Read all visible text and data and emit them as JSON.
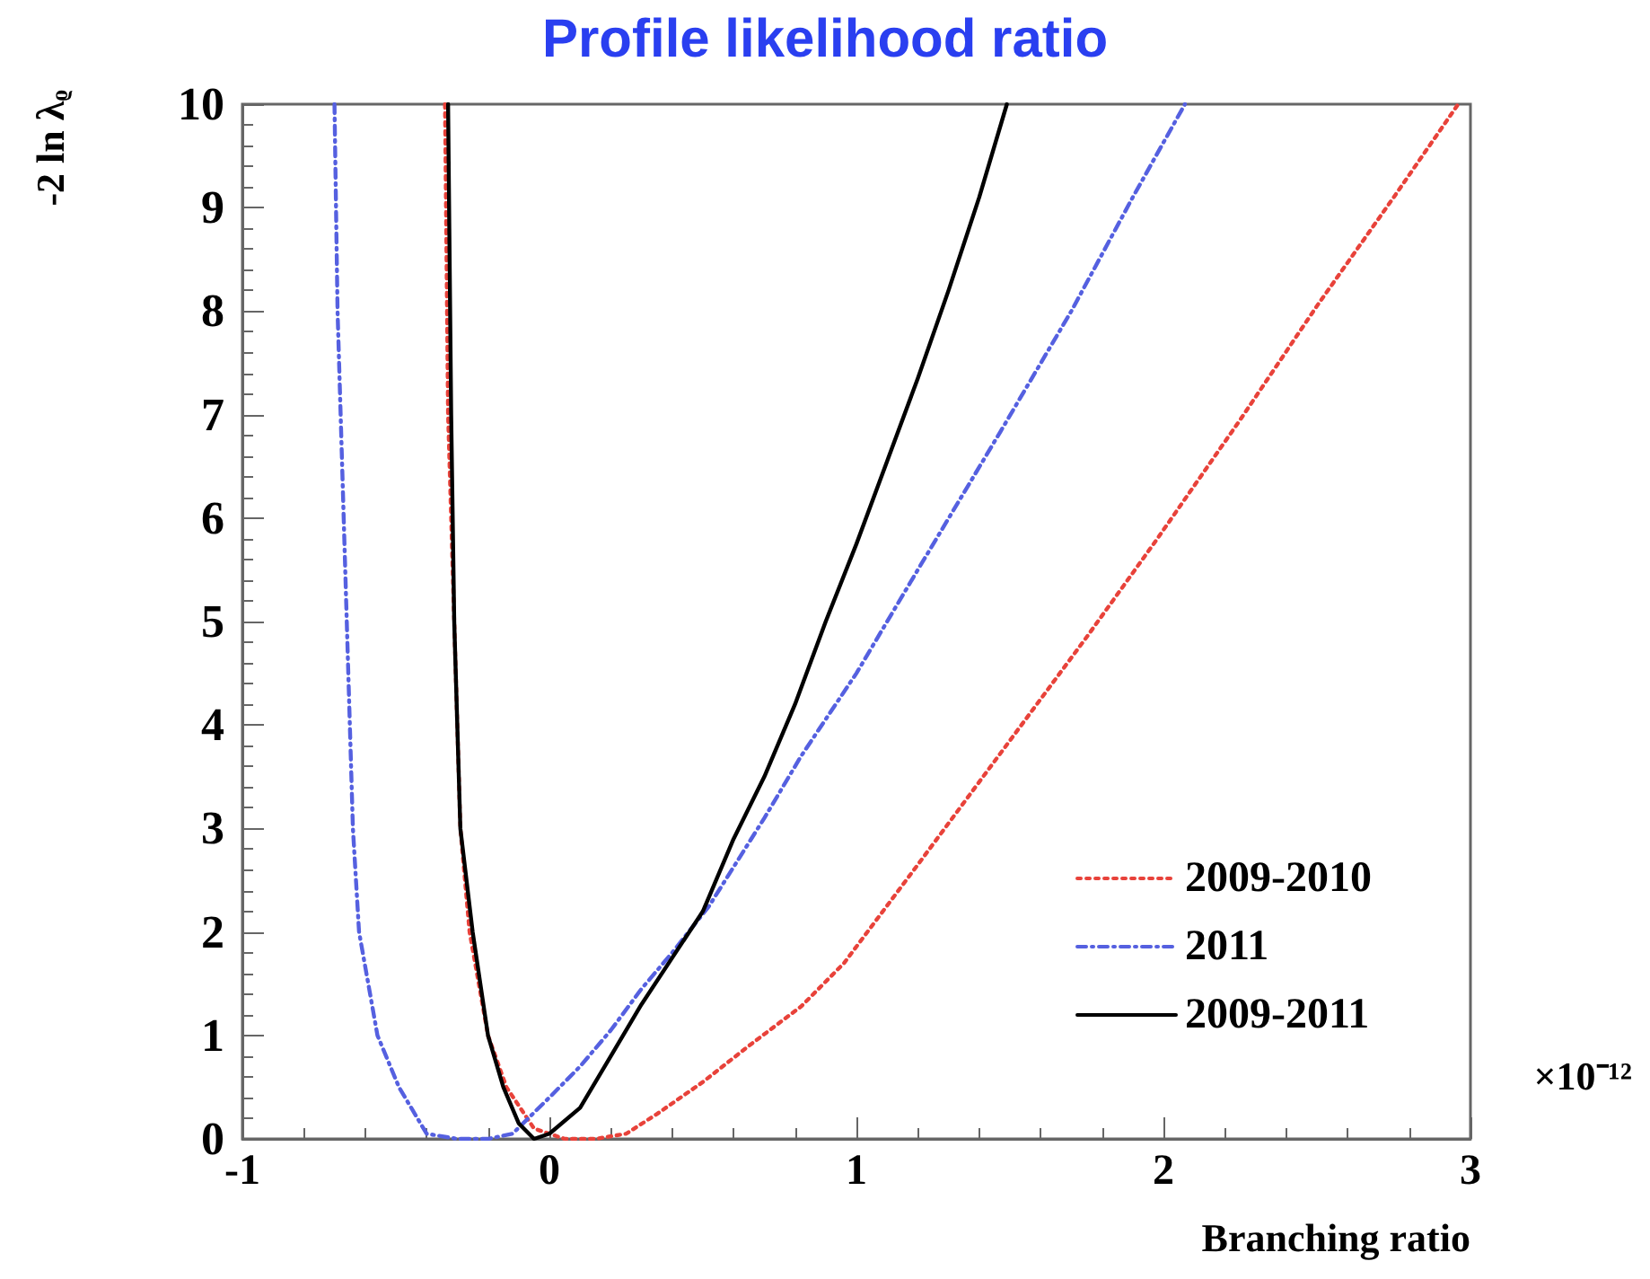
{
  "chart_data": {
    "type": "line",
    "title": "Profile likelihood ratio",
    "xlabel": "Branching ratio",
    "ylabel": "-2 ln λᵨ",
    "annotations": [
      "×10⁻¹²"
    ],
    "xlim": [
      -1,
      3
    ],
    "xticks": [
      -1,
      0,
      1,
      2,
      3
    ],
    "ylim": [
      0,
      10
    ],
    "yticks": [
      0,
      1,
      2,
      3,
      4,
      5,
      6,
      7,
      8,
      9,
      10
    ],
    "grid": false,
    "legend": "bottom right",
    "marker": "none",
    "series": [
      {
        "name": "2009-2010",
        "color": "#e8423a",
        "line_style": "dotted",
        "x": [
          -0.34,
          -0.33,
          -0.31,
          -0.29,
          -0.26,
          -0.2,
          -0.14,
          -0.05,
          0.05,
          0.15,
          0.25,
          0.35,
          0.5,
          0.65,
          0.82,
          0.96,
          1.2,
          1.5,
          1.75,
          1.98,
          2.25,
          2.5,
          2.75,
          2.96
        ],
        "values": [
          10,
          7,
          5,
          3,
          2,
          1,
          0.5,
          0.1,
          0,
          0,
          0.05,
          0.24,
          0.55,
          0.9,
          1.28,
          1.7,
          2.65,
          3.85,
          4.85,
          5.8,
          6.95,
          8.05,
          9.1,
          10
        ]
      },
      {
        "name": "2011",
        "color": "#5560e0",
        "line_style": "dashdot",
        "x": [
          -0.7,
          -0.69,
          -0.66,
          -0.64,
          -0.62,
          -0.56,
          -0.49,
          -0.4,
          -0.3,
          -0.2,
          -0.12,
          0,
          0.1,
          0.2,
          0.3,
          0.4,
          0.52,
          0.7,
          0.82,
          1.0,
          1.2,
          1.47,
          1.7,
          1.9,
          2.07
        ],
        "values": [
          10,
          8,
          5,
          3,
          2,
          1,
          0.5,
          0.05,
          0,
          0,
          0.05,
          0.4,
          0.7,
          1.05,
          1.45,
          1.8,
          2.25,
          3.1,
          3.7,
          4.5,
          5.5,
          6.84,
          8.0,
          9.1,
          10
        ]
      },
      {
        "name": "2009-2011",
        "color": "#000000",
        "line_style": "solid",
        "x": [
          -0.33,
          -0.32,
          -0.31,
          -0.29,
          -0.25,
          -0.2,
          -0.15,
          -0.1,
          -0.05,
          0,
          0.1,
          0.2,
          0.3,
          0.4,
          0.5,
          0.6,
          0.7,
          0.8,
          0.9,
          1.0,
          1.1,
          1.2,
          1.3,
          1.4,
          1.49
        ],
        "values": [
          10,
          7,
          5,
          3,
          2,
          1,
          0.5,
          0.15,
          0,
          0.05,
          0.3,
          0.8,
          1.3,
          1.75,
          2.2,
          2.9,
          3.5,
          4.2,
          5.0,
          5.75,
          6.55,
          7.35,
          8.2,
          9.1,
          10
        ]
      }
    ]
  }
}
